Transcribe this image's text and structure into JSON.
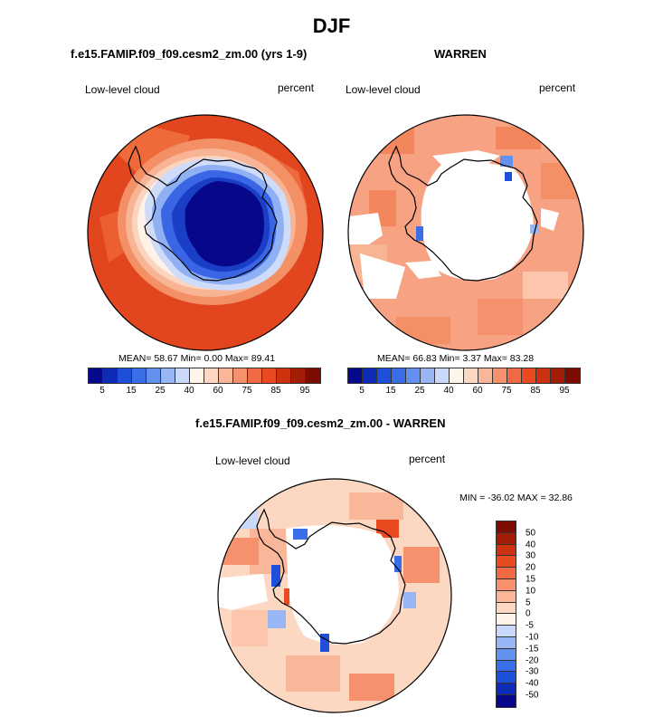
{
  "title": "DJF",
  "panel_left": {
    "case_title": "f.e15.FAMIP.f09_f09.cesm2_zm.00 (yrs 1-9)",
    "variable": "Low-level cloud",
    "units": "percent",
    "stats": "MEAN=  58.67  Min=   0.00  Max=  89.41"
  },
  "panel_right": {
    "case_title": "WARREN",
    "variable": "Low-level cloud",
    "units": "percent",
    "stats": "MEAN=  66.83  Min=   3.37  Max=  83.28"
  },
  "panel_diff": {
    "case_title": "f.e15.FAMIP.f09_f09.cesm2_zm.00 - WARREN",
    "variable": "Low-level cloud",
    "units": "percent",
    "stats": "MIN = -36.02 MAX =  32.86"
  },
  "colorbar_abs": {
    "tick_labels": [
      "5",
      "15",
      "25",
      "40",
      "60",
      "75",
      "85",
      "95"
    ],
    "colors": [
      "#08088c",
      "#0d2bb5",
      "#1d4fd8",
      "#3a6ee8",
      "#6490ef",
      "#98b5f4",
      "#cad9fa",
      "#fff4ea",
      "#fcd8c2",
      "#f9b698",
      "#f6906d",
      "#f26a44",
      "#e94a20",
      "#cd3210",
      "#a31d06",
      "#7d0c00"
    ]
  },
  "colorbar_diff": {
    "tick_labels": [
      "50",
      "40",
      "30",
      "20",
      "15",
      "10",
      "5",
      "0",
      "-5",
      "-10",
      "-15",
      "-20",
      "-30",
      "-40",
      "-50"
    ],
    "colors": [
      "#7d0c00",
      "#a31d06",
      "#cd3210",
      "#e94a20",
      "#f26a44",
      "#f6906d",
      "#f9b698",
      "#fcd8c2",
      "#fff4ea",
      "#cad9fa",
      "#98b5f4",
      "#6490ef",
      "#3a6ee8",
      "#1d4fd8",
      "#0d2bb5",
      "#08088c"
    ]
  }
}
